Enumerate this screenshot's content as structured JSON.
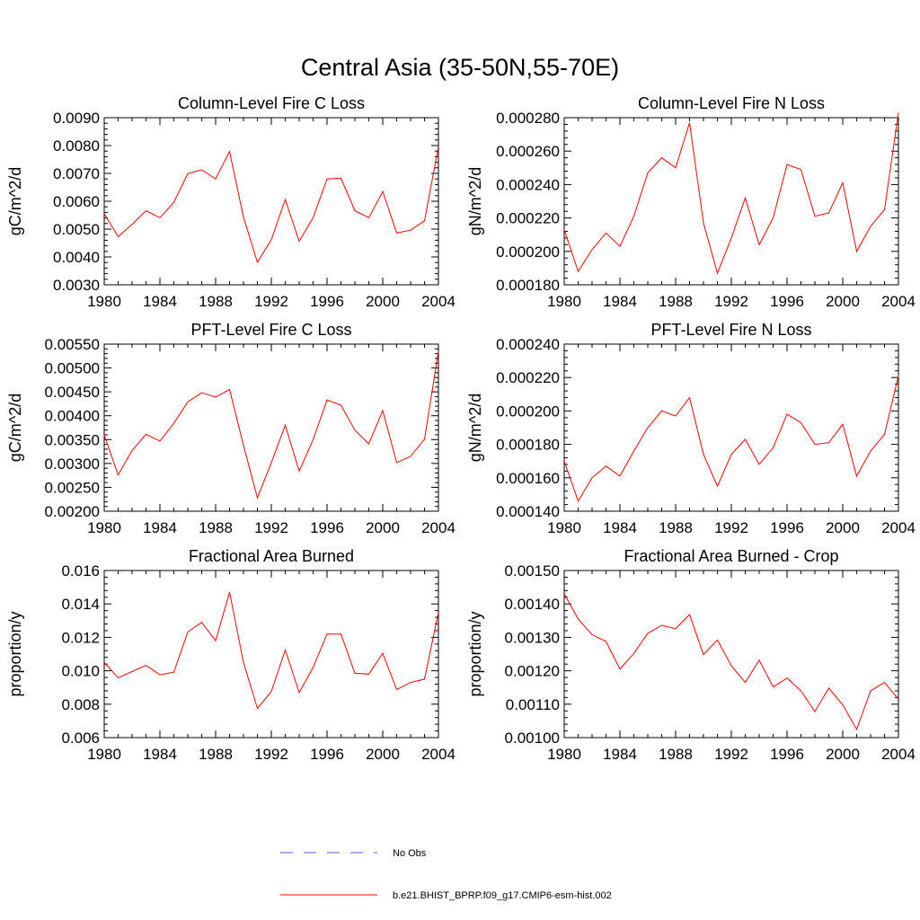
{
  "page": {
    "title": "Central Asia (35-50N,55-70E)"
  },
  "legend": {
    "entries": [
      {
        "label": "No Obs",
        "color": "#5a5adc",
        "dash": true
      },
      {
        "label": "b.e21.BHIST_BPRP.f09_g17.CMIP6-esm-hist.002",
        "color": "#ff0000",
        "dash": false
      }
    ]
  },
  "chart_data": [
    {
      "type": "line",
      "title": "Column-Level Fire C Loss",
      "xlabel": "",
      "ylabel": "gC/m^2/d",
      "xlim": [
        1980,
        2004
      ],
      "ylim": [
        0.003,
        0.009
      ],
      "x_ticks": [
        "1980",
        "1984",
        "1988",
        "1992",
        "1996",
        "2000",
        "2004"
      ],
      "y_ticks": [
        "0.0030",
        "0.0040",
        "0.0050",
        "0.0060",
        "0.0070",
        "0.0080",
        "0.0090"
      ],
      "x": [
        1980,
        1981,
        1982,
        1983,
        1984,
        1985,
        1986,
        1987,
        1988,
        1989,
        1990,
        1991,
        1992,
        1993,
        1994,
        1995,
        1996,
        1997,
        1998,
        1999,
        2000,
        2001,
        2002,
        2003,
        2004
      ],
      "series": [
        {
          "name": "b.e21.BHIST_BPRP.f09_g17.CMIP6-esm-hist.002",
          "values": [
            0.00555,
            0.00473,
            0.00517,
            0.00566,
            0.00541,
            0.00596,
            0.00699,
            0.00713,
            0.0068,
            0.00779,
            0.00543,
            0.00381,
            0.00462,
            0.00606,
            0.00456,
            0.00541,
            0.0068,
            0.00683,
            0.00566,
            0.00541,
            0.00635,
            0.00486,
            0.00496,
            0.0053,
            0.00796
          ]
        }
      ]
    },
    {
      "type": "line",
      "title": "Column-Level Fire N Loss",
      "xlabel": "",
      "ylabel": "gN/m^2/d",
      "xlim": [
        1980,
        2004
      ],
      "ylim": [
        0.00018,
        0.00028
      ],
      "x_ticks": [
        "1980",
        "1984",
        "1988",
        "1992",
        "1996",
        "2000",
        "2004"
      ],
      "y_ticks": [
        "0.000180",
        "0.000200",
        "0.000220",
        "0.000240",
        "0.000260",
        "0.000280"
      ],
      "x": [
        1980,
        1981,
        1982,
        1983,
        1984,
        1985,
        1986,
        1987,
        1988,
        1989,
        1990,
        1991,
        1992,
        1993,
        1994,
        1995,
        1996,
        1997,
        1998,
        1999,
        2000,
        2001,
        2002,
        2003,
        2004
      ],
      "series": [
        {
          "name": "b.e21.BHIST_BPRP.f09_g17.CMIP6-esm-hist.002",
          "values": [
            0.000213,
            0.000188,
            0.000201,
            0.000211,
            0.000203,
            0.000221,
            0.000247,
            0.000256,
            0.00025,
            0.000277,
            0.000217,
            0.000187,
            0.000208,
            0.000232,
            0.000204,
            0.00022,
            0.000252,
            0.000249,
            0.000221,
            0.000223,
            0.000241,
            0.0002,
            0.000215,
            0.000225,
            0.000283
          ]
        }
      ]
    },
    {
      "type": "line",
      "title": "PFT-Level Fire C Loss",
      "xlabel": "",
      "ylabel": "gC/m^2/d",
      "xlim": [
        1980,
        2004
      ],
      "ylim": [
        0.002,
        0.0055
      ],
      "x_ticks": [
        "1980",
        "1984",
        "1988",
        "1992",
        "1996",
        "2000",
        "2004"
      ],
      "y_ticks": [
        "0.00200",
        "0.00250",
        "0.00300",
        "0.00350",
        "0.00400",
        "0.00450",
        "0.00500",
        "0.00550"
      ],
      "x": [
        1980,
        1981,
        1982,
        1983,
        1984,
        1985,
        1986,
        1987,
        1988,
        1989,
        1990,
        1991,
        1992,
        1993,
        1994,
        1995,
        1996,
        1997,
        1998,
        1999,
        2000,
        2001,
        2002,
        2003,
        2004
      ],
      "series": [
        {
          "name": "b.e21.BHIST_BPRP.f09_g17.CMIP6-esm-hist.002",
          "values": [
            0.0036,
            0.00276,
            0.00327,
            0.00361,
            0.00347,
            0.00384,
            0.00429,
            0.00448,
            0.00439,
            0.00455,
            0.00338,
            0.00228,
            0.00302,
            0.0038,
            0.00284,
            0.0035,
            0.00433,
            0.00422,
            0.0037,
            0.00341,
            0.00411,
            0.00302,
            0.00315,
            0.00351,
            0.00535
          ]
        }
      ]
    },
    {
      "type": "line",
      "title": "PFT-Level Fire N Loss",
      "xlabel": "",
      "ylabel": "gN/m^2/d",
      "xlim": [
        1980,
        2004
      ],
      "ylim": [
        0.00014,
        0.00024
      ],
      "x_ticks": [
        "1980",
        "1984",
        "1988",
        "1992",
        "1996",
        "2000",
        "2004"
      ],
      "y_ticks": [
        "0.000140",
        "0.000160",
        "0.000180",
        "0.000200",
        "0.000220",
        "0.000240"
      ],
      "x": [
        1980,
        1981,
        1982,
        1983,
        1984,
        1985,
        1986,
        1987,
        1988,
        1989,
        1990,
        1991,
        1992,
        1993,
        1994,
        1995,
        1996,
        1997,
        1998,
        1999,
        2000,
        2001,
        2002,
        2003,
        2004
      ],
      "series": [
        {
          "name": "b.e21.BHIST_BPRP.f09_g17.CMIP6-esm-hist.002",
          "values": [
            0.00017,
            0.000146,
            0.00016,
            0.000167,
            0.000161,
            0.000176,
            0.00019,
            0.0002,
            0.000197,
            0.000208,
            0.000174,
            0.000155,
            0.000174,
            0.000183,
            0.000168,
            0.000178,
            0.000198,
            0.000193,
            0.00018,
            0.000181,
            0.000192,
            0.000161,
            0.000176,
            0.000186,
            0.000221
          ]
        }
      ]
    },
    {
      "type": "line",
      "title": "Fractional Area Burned",
      "xlabel": "",
      "ylabel": "proportion/y",
      "xlim": [
        1980,
        2004
      ],
      "ylim": [
        0.006,
        0.016
      ],
      "x_ticks": [
        "1980",
        "1984",
        "1988",
        "1992",
        "1996",
        "2000",
        "2004"
      ],
      "y_ticks": [
        "0.006",
        "0.008",
        "0.010",
        "0.012",
        "0.014",
        "0.016"
      ],
      "x": [
        1980,
        1981,
        1982,
        1983,
        1984,
        1985,
        1986,
        1987,
        1988,
        1989,
        1990,
        1991,
        1992,
        1993,
        1994,
        1995,
        1996,
        1997,
        1998,
        1999,
        2000,
        2001,
        2002,
        2003,
        2004
      ],
      "series": [
        {
          "name": "b.e21.BHIST_BPRP.f09_g17.CMIP6-esm-hist.002",
          "values": [
            0.0105,
            0.00958,
            0.00995,
            0.01032,
            0.00976,
            0.00992,
            0.01232,
            0.0129,
            0.0118,
            0.0147,
            0.0105,
            0.00775,
            0.00876,
            0.01125,
            0.0087,
            0.0102,
            0.0122,
            0.0122,
            0.00985,
            0.0098,
            0.01105,
            0.00887,
            0.0093,
            0.0095,
            0.0135
          ]
        }
      ]
    },
    {
      "type": "line",
      "title": "Fractional Area Burned - Crop",
      "xlabel": "",
      "ylabel": "proportion/y",
      "xlim": [
        1980,
        2004
      ],
      "ylim": [
        0.001,
        0.0015
      ],
      "x_ticks": [
        "1980",
        "1984",
        "1988",
        "1992",
        "1996",
        "2000",
        "2004"
      ],
      "y_ticks": [
        "0.00100",
        "0.00110",
        "0.00120",
        "0.00130",
        "0.00140",
        "0.00150"
      ],
      "x": [
        1980,
        1981,
        1982,
        1983,
        1984,
        1985,
        1986,
        1987,
        1988,
        1989,
        1990,
        1991,
        1992,
        1993,
        1994,
        1995,
        1996,
        1997,
        1998,
        1999,
        2000,
        2001,
        2002,
        2003,
        2004
      ],
      "series": [
        {
          "name": "b.e21.BHIST_BPRP.f09_g17.CMIP6-esm-hist.002",
          "values": [
            0.00143,
            0.001355,
            0.001308,
            0.001288,
            0.001205,
            0.001252,
            0.001312,
            0.001336,
            0.001326,
            0.001368,
            0.001248,
            0.001292,
            0.001215,
            0.001165,
            0.001232,
            0.001152,
            0.001178,
            0.00114,
            0.001078,
            0.001148,
            0.001098,
            0.001025,
            0.00114,
            0.001165,
            0.001115
          ]
        }
      ]
    }
  ]
}
